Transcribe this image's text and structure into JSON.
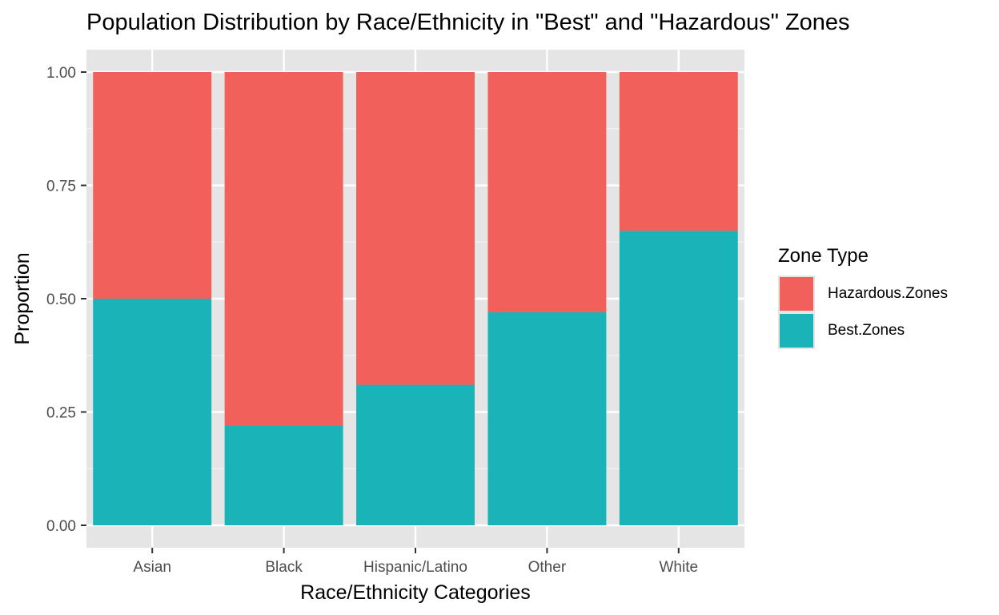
{
  "chart_data": {
    "type": "bar",
    "stacked": true,
    "title": "Population Distribution by Race/Ethnicity in \"Best\" and \"Hazardous\" Zones",
    "xlabel": "Race/Ethnicity Categories",
    "ylabel": "Proportion",
    "ylim": [
      0,
      1
    ],
    "yticks": [
      "0.00",
      "0.25",
      "0.50",
      "0.75",
      "1.00"
    ],
    "categories": [
      "Asian",
      "Black",
      "Hispanic/Latino",
      "Other",
      "White"
    ],
    "series": [
      {
        "name": "Best.Zones",
        "color": "#1AB3B8",
        "values": [
          0.5,
          0.22,
          0.31,
          0.47,
          0.65
        ]
      },
      {
        "name": "Hazardous.Zones",
        "color": "#F2605C",
        "values": [
          0.5,
          0.78,
          0.69,
          0.53,
          0.35
        ]
      }
    ],
    "grid": true,
    "legend": {
      "title": "Zone Type",
      "position": "right",
      "order": [
        "Hazardous.Zones",
        "Best.Zones"
      ]
    }
  }
}
